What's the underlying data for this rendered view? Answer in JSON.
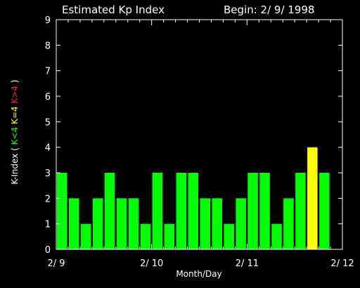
{
  "chart_data": {
    "type": "bar",
    "title": "Estimated Kp Index",
    "begin_label": "Begin: 2/ 9/ 1998",
    "xlabel": "Month/Day",
    "ylabel_parts": [
      {
        "text": "K-Index ( ",
        "color": "#ffffff"
      },
      {
        "text": "K<4 ",
        "color": "#00ff00"
      },
      {
        "text": "K=4 ",
        "color": "#ffff00"
      },
      {
        "text": "K>4",
        "color": "#ff2020"
      },
      {
        "text": " )",
        "color": "#ffffff"
      }
    ],
    "ylim": [
      0,
      9
    ],
    "yticks": [
      "0",
      "1",
      "2",
      "3",
      "4",
      "5",
      "6",
      "7",
      "8",
      "9"
    ],
    "xticks": [
      {
        "label": "2/ 9",
        "pos": 0
      },
      {
        "label": "2/ 10",
        "pos": 8
      },
      {
        "label": "2/ 11",
        "pos": 16
      },
      {
        "label": "2/ 12",
        "pos": 24
      }
    ],
    "x_slots": 24,
    "values": [
      3,
      2,
      1,
      2,
      3,
      2,
      2,
      1,
      3,
      1,
      3,
      3,
      2,
      2,
      1,
      2,
      3,
      3,
      1,
      2,
      3,
      4,
      3
    ],
    "colors": {
      "below": "#00ff00",
      "equal": "#ffff00",
      "above": "#ff2020",
      "axis": "#ffffff"
    }
  }
}
